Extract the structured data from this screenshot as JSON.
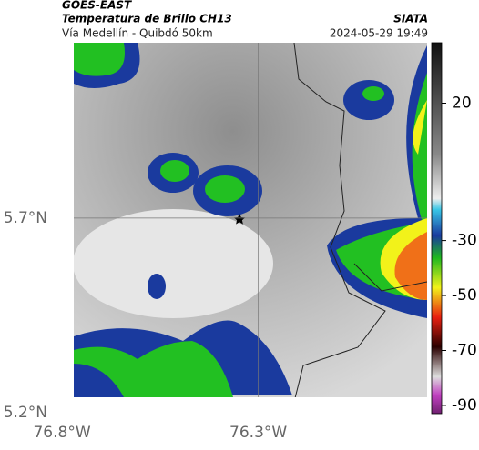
{
  "header": {
    "product": "GOES-EAST",
    "title": "Temperatura de Brillo CH13",
    "region": "Vía Medellín - Quibdó 50km",
    "source": "SIATA",
    "datetime": "2024-05-29 19:49"
  },
  "map": {
    "lon_range": [
      -76.77,
      -75.87
    ],
    "lat_range": [
      5.24,
      6.15
    ],
    "lat_ticks": [
      {
        "value": 5.7,
        "label": "5.7°N"
      },
      {
        "value": 5.2,
        "label": "5.2°N"
      }
    ],
    "lon_ticks": [
      {
        "value": -76.8,
        "label": "76.8°W"
      },
      {
        "value": -76.3,
        "label": "76.3°W"
      }
    ]
  },
  "colorbar": {
    "lim": [
      -93,
      42
    ],
    "ticks": [
      20,
      -30,
      -50,
      -70,
      -90
    ]
  }
}
